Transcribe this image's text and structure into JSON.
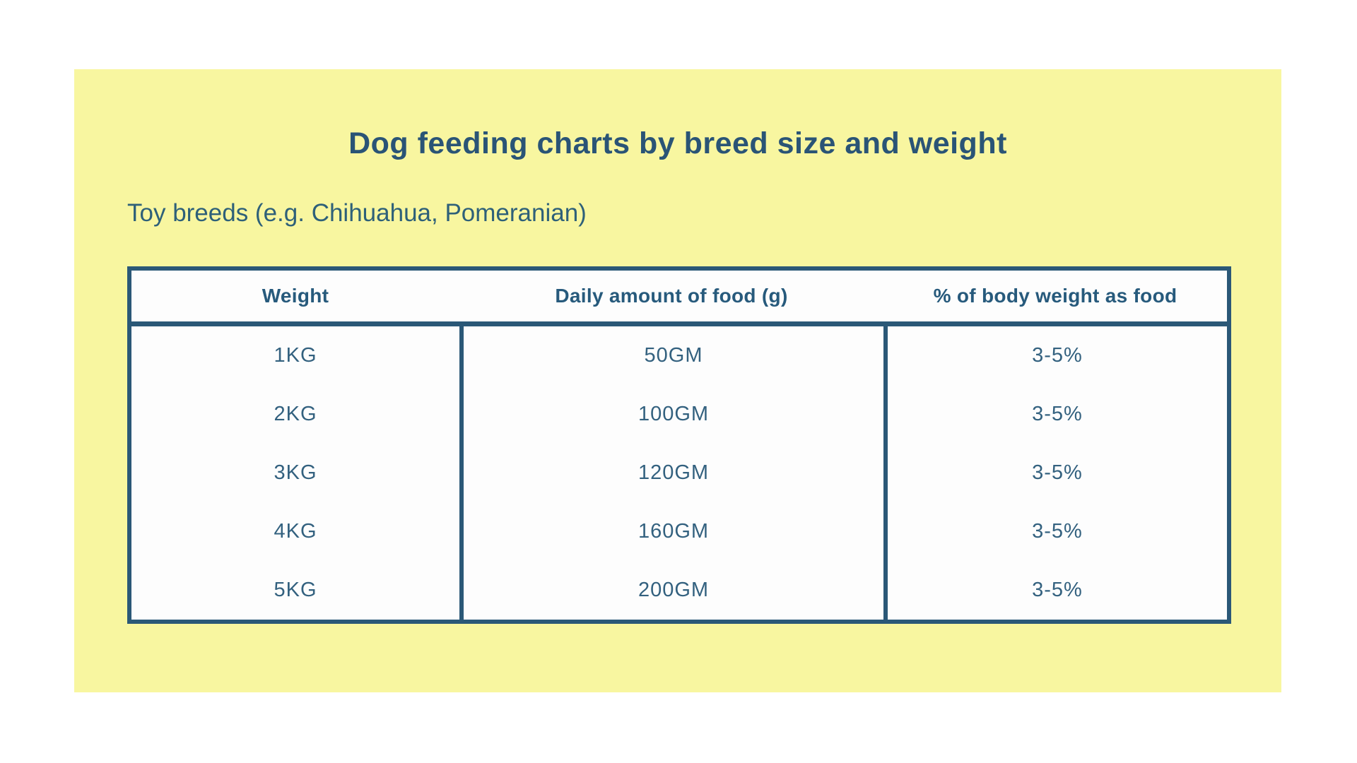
{
  "page": {
    "background_color": "#ffffff",
    "card_color": "#f8f6a0",
    "accent_color": "#2b5877",
    "text_color": "#2a5476"
  },
  "title": "Dog feeding charts by breed size and weight",
  "subtitle": "Toy breeds (e.g. Chihuahua, Pomeranian)",
  "chart_data": {
    "type": "table",
    "title": "Dog feeding charts by breed size and weight",
    "subtitle": "Toy breeds (e.g. Chihuahua, Pomeranian)",
    "columns": [
      "Weight",
      "Daily amount of food (g)",
      "% of body weight as food"
    ],
    "rows": [
      [
        "1KG",
        "50GM",
        "3-5%"
      ],
      [
        "2KG",
        "100GM",
        "3-5%"
      ],
      [
        "3KG",
        "120GM",
        "3-5%"
      ],
      [
        "4KG",
        "160GM",
        "3-5%"
      ],
      [
        "5KG",
        "200GM",
        "3-5%"
      ]
    ]
  }
}
